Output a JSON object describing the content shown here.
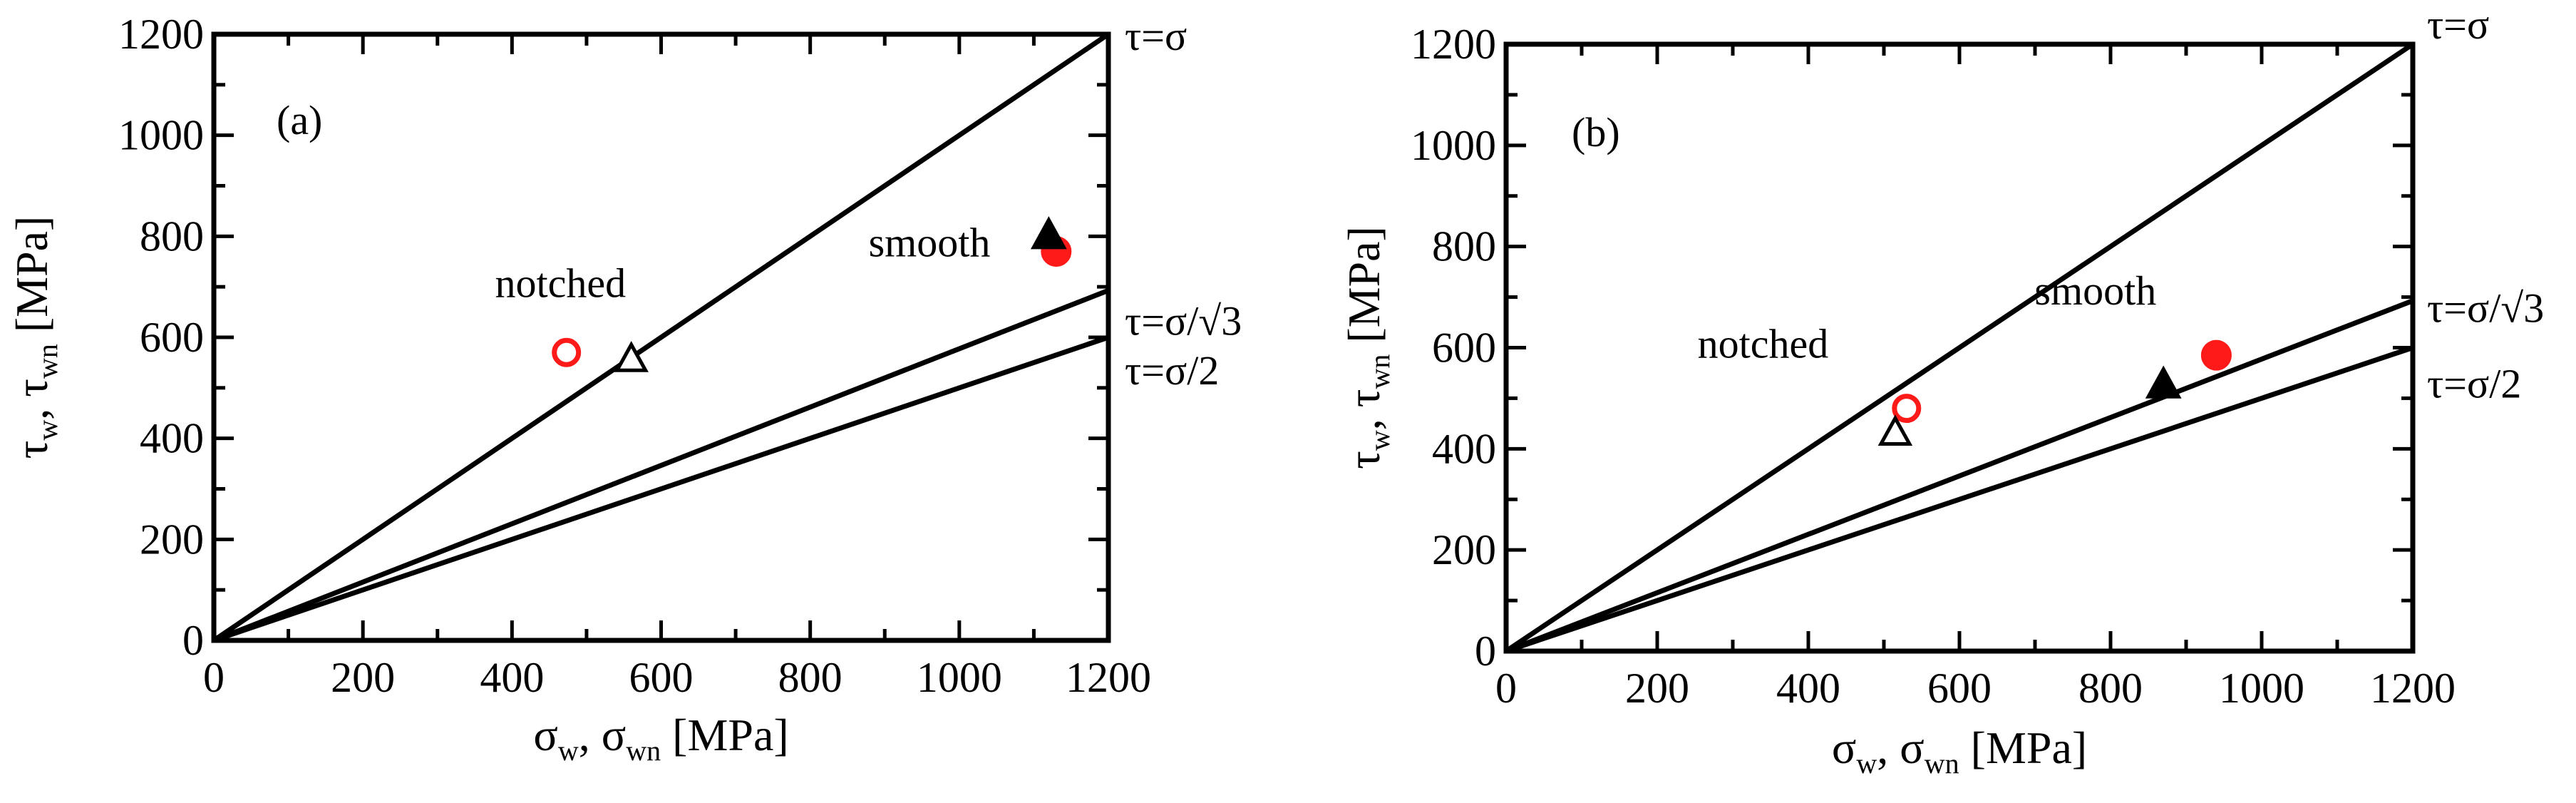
{
  "chart_data": [
    {
      "type": "scatter",
      "panel_label": "(a)",
      "xlabel_main": "σ",
      "xlabel_sub1": "w",
      "xlabel_mid": ", σ",
      "xlabel_sub2": "wn",
      "xlabel_unit": " [MPa]",
      "ylabel_main": "τ",
      "ylabel_sub1": "w",
      "ylabel_mid": ", τ",
      "ylabel_sub2": "wn",
      "ylabel_unit": " [MPa]",
      "xlim": [
        0,
        1200
      ],
      "ylim": [
        0,
        1200
      ],
      "xticks": [
        "0",
        "200",
        "400",
        "600",
        "800",
        "1000",
        "1200"
      ],
      "yticks": [
        "0",
        "200",
        "400",
        "600",
        "800",
        "1000",
        "1200"
      ],
      "reference_lines": [
        {
          "label": "τ=σ",
          "slope": 1.0
        },
        {
          "label": "τ=σ/√3",
          "slope": 0.57735
        },
        {
          "label": "τ=σ/2",
          "slope": 0.5
        }
      ],
      "series": [
        {
          "marker": "open-circle-red",
          "points": [
            [
              473,
              570
            ]
          ]
        },
        {
          "marker": "open-triangle-black",
          "points": [
            [
              560,
              555
            ]
          ]
        },
        {
          "marker": "filled-circle-red",
          "points": [
            [
              1130,
              770
            ]
          ]
        },
        {
          "marker": "filled-triangle-black",
          "points": [
            [
              1120,
              800
            ]
          ]
        }
      ],
      "annotations": [
        {
          "text": "notched",
          "x": 465,
          "y": 680
        },
        {
          "text": "smooth",
          "x": 960,
          "y": 760
        }
      ]
    },
    {
      "type": "scatter",
      "panel_label": "(b)",
      "xlabel_main": "σ",
      "xlabel_sub1": "w",
      "xlabel_mid": ", σ",
      "xlabel_sub2": "wn",
      "xlabel_unit": " [MPa]",
      "ylabel_main": "τ",
      "ylabel_sub1": "w",
      "ylabel_mid": ", τ",
      "ylabel_sub2": "wn",
      "ylabel_unit": " [MPa]",
      "xlim": [
        0,
        1200
      ],
      "ylim": [
        0,
        1200
      ],
      "xticks": [
        "0",
        "200",
        "400",
        "600",
        "800",
        "1000",
        "1200"
      ],
      "yticks": [
        "0",
        "200",
        "400",
        "600",
        "800",
        "1000",
        "1200"
      ],
      "reference_lines": [
        {
          "label": "τ=σ",
          "slope": 1.0
        },
        {
          "label": "τ=σ/√3",
          "slope": 0.57735
        },
        {
          "label": "τ=σ/2",
          "slope": 0.5
        }
      ],
      "series": [
        {
          "marker": "open-circle-red",
          "points": [
            [
              530,
              480
            ]
          ]
        },
        {
          "marker": "open-triangle-black",
          "points": [
            [
              515,
              430
            ]
          ]
        },
        {
          "marker": "filled-circle-red",
          "points": [
            [
              940,
              585
            ]
          ]
        },
        {
          "marker": "filled-triangle-black",
          "points": [
            [
              870,
              525
            ]
          ]
        }
      ],
      "annotations": [
        {
          "text": "notched",
          "x": 340,
          "y": 580
        },
        {
          "text": "smooth",
          "x": 780,
          "y": 685
        }
      ]
    }
  ]
}
